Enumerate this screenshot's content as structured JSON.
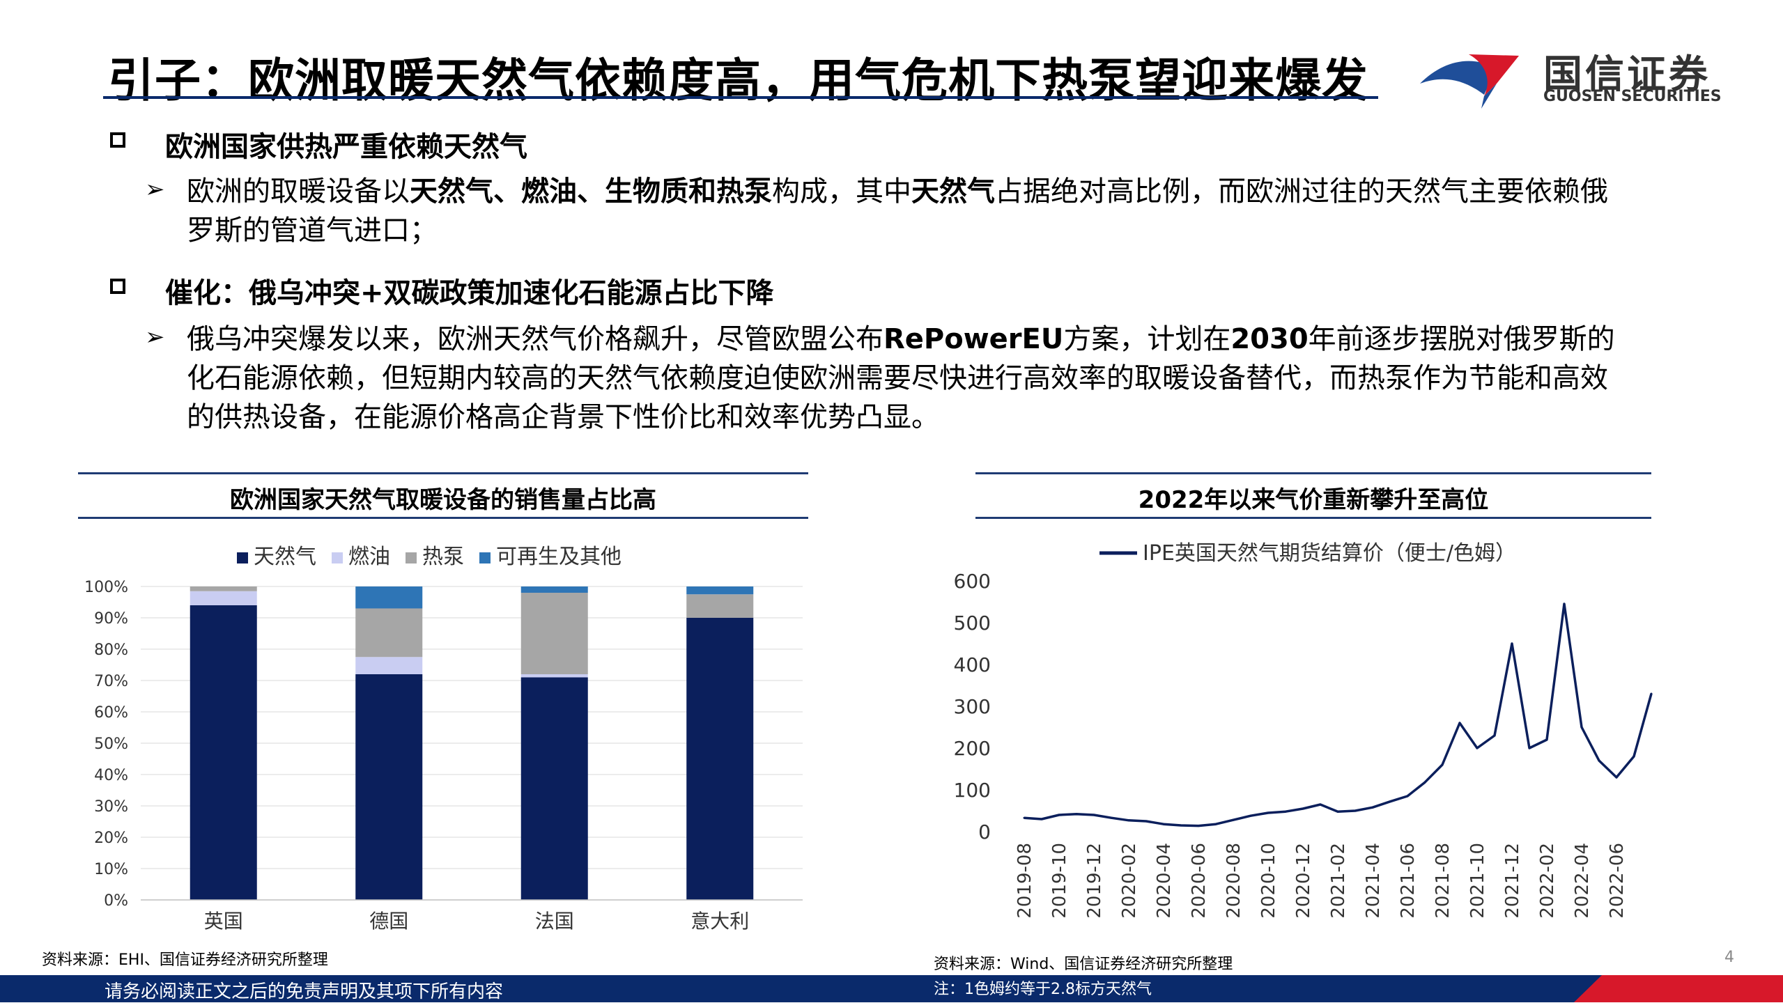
{
  "header": {
    "title": "引子：欧洲取暖天然气依赖度高，用气危机下热泵望迎来爆发",
    "logo_cn": "国信证券",
    "logo_en": "GUOSEN SECURITIES"
  },
  "section1": {
    "heading": "欧洲国家供热严重依赖天然气",
    "text_segments": [
      {
        "t": "欧洲的取暖设备以",
        "b": false
      },
      {
        "t": "天然气、燃油、生物质和热泵",
        "b": true
      },
      {
        "t": "构成，其中",
        "b": false
      },
      {
        "t": "天然气",
        "b": true
      },
      {
        "t": "占据绝对高比例，而欧洲过往的天然气主要依赖俄罗斯的管道气进口；",
        "b": false
      }
    ]
  },
  "section2": {
    "heading": "催化：俄乌冲突+双碳政策加速化石能源占比下降",
    "text_segments": [
      {
        "t": "俄乌冲突爆发以来，欧洲天然气价格飙升，尽管欧盟公布",
        "b": false
      },
      {
        "t": "RePowerEU",
        "b": true
      },
      {
        "t": "方案，计划在",
        "b": false
      },
      {
        "t": "2030",
        "b": true
      },
      {
        "t": "年前逐步摆脱对俄罗斯的化石能源依赖，但短期内较高的天然气依赖度迫使欧洲需要尽快进行高效率的取暖设备替代，而热泵作为节能和高效的供热设备，在能源价格高企背景下性价比和效率优势凸显。",
        "b": false
      }
    ]
  },
  "left_panel": {
    "title": "欧洲国家天然气取暖设备的销售量占比高",
    "source": "资料来源：EHI、国信证券经济研究所整理"
  },
  "right_panel": {
    "title": "2022年以来气价重新攀升至高位",
    "source": "资料来源：Wind、国信证券经济研究所整理",
    "note": "注：1色姆约等于2.8标方天然气"
  },
  "footer": {
    "disclaimer": "请务必阅读正文之后的免责声明及其项下所有内容",
    "page": "4"
  },
  "colors": {
    "navy": "#0b1f5c",
    "lavender": "#c9cdf2",
    "gray": "#a6a6a6",
    "blue": "#2e75b6",
    "brand_red": "#d7182a",
    "brand_blue": "#1f4e99"
  },
  "chart_data": [
    {
      "type": "bar",
      "stacked": true,
      "categories": [
        "英国",
        "德国",
        "法国",
        "意大利"
      ],
      "series": [
        {
          "name": "天然气",
          "values": [
            94,
            72,
            71,
            90
          ],
          "color": "#0b1f5c"
        },
        {
          "name": "燃油",
          "values": [
            4.5,
            5.5,
            1,
            0
          ],
          "color": "#c9cdf2"
        },
        {
          "name": "热泵",
          "values": [
            1.5,
            15.5,
            26,
            7.5
          ],
          "color": "#a6a6a6"
        },
        {
          "name": "可再生及其他",
          "values": [
            0,
            7,
            2,
            2.5
          ],
          "color": "#2e75b6"
        }
      ],
      "yticks": [
        "0%",
        "10%",
        "20%",
        "30%",
        "40%",
        "50%",
        "60%",
        "70%",
        "80%",
        "90%",
        "100%"
      ],
      "ylim": [
        0,
        100
      ],
      "legend": "top"
    },
    {
      "type": "line",
      "series": [
        {
          "name": "IPE英国天然气期货结算价（便士/色姆）",
          "color": "#0b1f5c",
          "x": [
            "2019-08",
            "2019-09",
            "2019-10",
            "2019-11",
            "2019-12",
            "2020-01",
            "2020-02",
            "2020-03",
            "2020-04",
            "2020-05",
            "2020-06",
            "2020-07",
            "2020-08",
            "2020-09",
            "2020-10",
            "2020-11",
            "2020-12",
            "2021-01",
            "2021-02",
            "2021-03",
            "2021-04",
            "2021-05",
            "2021-06",
            "2021-07",
            "2021-08",
            "2021-09",
            "2021-10",
            "2021-11",
            "2021-12",
            "2022-01",
            "2022-02",
            "2022-03",
            "2022-04",
            "2022-05",
            "2022-06",
            "2022-07",
            "2022-08"
          ],
          "y": [
            33,
            30,
            40,
            42,
            40,
            33,
            27,
            25,
            18,
            15,
            14,
            18,
            28,
            38,
            45,
            48,
            55,
            65,
            48,
            50,
            58,
            72,
            85,
            118,
            160,
            260,
            200,
            230,
            450,
            200,
            220,
            545,
            250,
            170,
            130,
            180,
            330
          ]
        }
      ],
      "xticks": [
        "2019-08",
        "2019-10",
        "2019-12",
        "2020-02",
        "2020-04",
        "2020-06",
        "2020-08",
        "2020-10",
        "2020-12",
        "2021-02",
        "2021-04",
        "2021-06",
        "2021-08",
        "2021-10",
        "2021-12",
        "2022-02",
        "2022-04",
        "2022-06"
      ],
      "yticks": [
        0,
        100,
        200,
        300,
        400,
        500,
        600
      ],
      "ylim": [
        0,
        600
      ],
      "legend": "top"
    }
  ]
}
